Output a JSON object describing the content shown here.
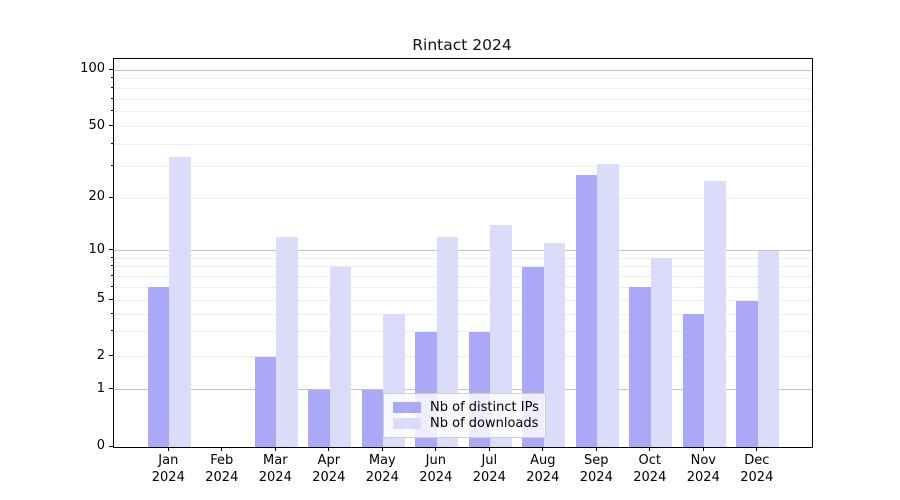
{
  "title": "Rintact 2024",
  "legend": {
    "items": [
      {
        "label": "Nb of distinct IPs",
        "color": "#aaa9f8"
      },
      {
        "label": "Nb of downloads",
        "color": "#dbdbfa"
      }
    ]
  },
  "y_axis": {
    "tick_labels": [
      "0",
      "1",
      "2",
      "5",
      "10",
      "20",
      "50",
      "100"
    ]
  },
  "x_axis": {
    "tick_labels": [
      "Jan 2024",
      "Feb 2024",
      "Mar 2024",
      "Apr 2024",
      "May 2024",
      "Jun 2024",
      "Jul 2024",
      "Aug 2024",
      "Sep 2024",
      "Oct 2024",
      "Nov 2024",
      "Dec 2024"
    ]
  },
  "chart_data": {
    "type": "bar",
    "title": "Rintact 2024",
    "categories": [
      "Jan 2024",
      "Feb 2024",
      "Mar 2024",
      "Apr 2024",
      "May 2024",
      "Jun 2024",
      "Jul 2024",
      "Aug 2024",
      "Sep 2024",
      "Oct 2024",
      "Nov 2024",
      "Dec 2024"
    ],
    "series": [
      {
        "name": "Nb of distinct IPs",
        "color": "#aaa9f8",
        "values": [
          6,
          0,
          2,
          1,
          1,
          3,
          3,
          8,
          27,
          6,
          4,
          5
        ]
      },
      {
        "name": "Nb of downloads",
        "color": "#dbdbfa",
        "values": [
          34,
          0,
          12,
          8,
          4,
          12,
          14,
          11,
          31,
          9,
          25,
          10
        ]
      }
    ],
    "yscale": "symlog",
    "ylim": [
      0,
      115
    ],
    "yticks_major": [
      0,
      1,
      2,
      5,
      10,
      20,
      50,
      100
    ],
    "yticks_minor": [
      3,
      4,
      6,
      7,
      8,
      9,
      30,
      40,
      60,
      70,
      80,
      90
    ],
    "grid": "horizontal",
    "legend_position": "lower center",
    "scale_anchors": [
      [
        0,
        0
      ],
      [
        1,
        0.148
      ],
      [
        2,
        0.233
      ],
      [
        5,
        0.3776
      ],
      [
        10,
        0.5064
      ],
      [
        20,
        0.6405
      ],
      [
        50,
        0.826
      ],
      [
        100,
        0.9716
      ]
    ],
    "grid_color_minor": "#ededed",
    "grid_color_major": "#c2c2c2"
  }
}
